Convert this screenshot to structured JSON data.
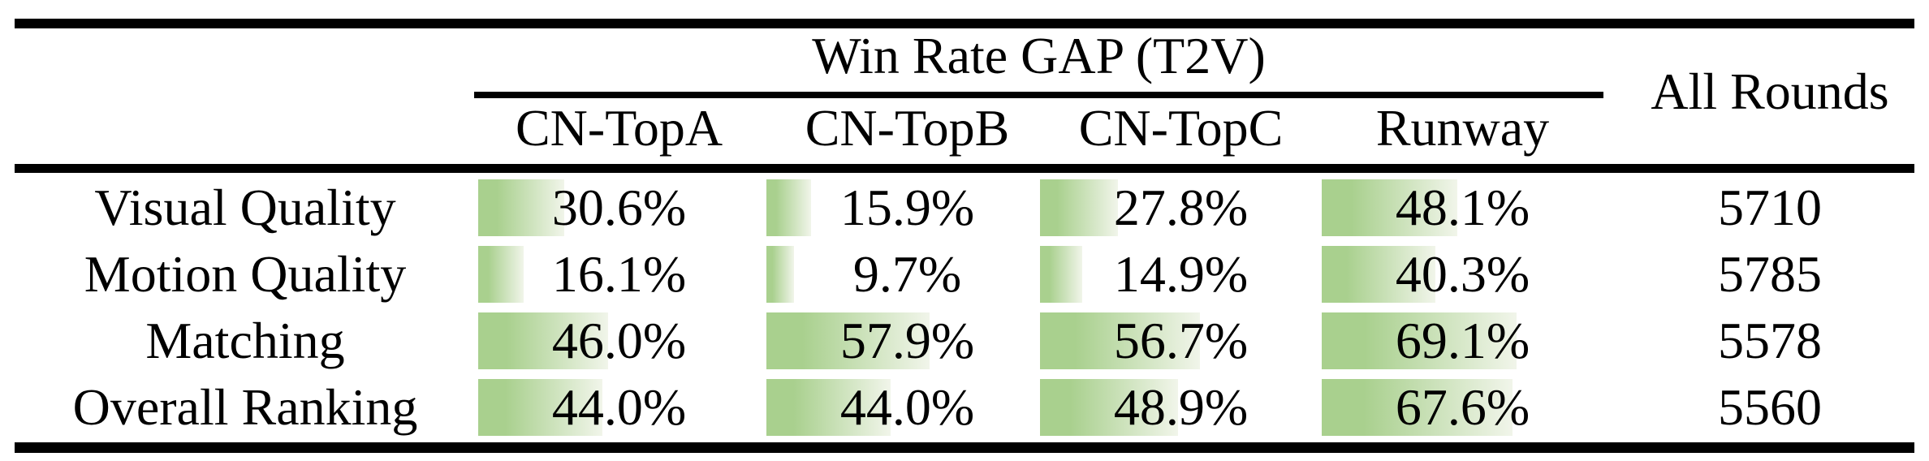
{
  "table": {
    "group_header": "Win Rate GAP (T2V)",
    "all_rounds_header": "All Rounds",
    "columns": [
      "CN-TopA",
      "CN-TopB",
      "CN-TopC",
      "Runway"
    ],
    "rows": [
      {
        "label": "Visual Quality",
        "values": [
          "30.6%",
          "15.9%",
          "27.8%",
          "48.1%"
        ],
        "bar_pcts": [
          30.6,
          15.9,
          27.8,
          48.1
        ],
        "all_rounds": "5710"
      },
      {
        "label": "Motion Quality",
        "values": [
          "16.1%",
          "9.7%",
          "14.9%",
          "40.3%"
        ],
        "bar_pcts": [
          16.1,
          9.7,
          14.9,
          40.3
        ],
        "all_rounds": "5785"
      },
      {
        "label": "Matching",
        "values": [
          "46.0%",
          "57.9%",
          "56.7%",
          "69.1%"
        ],
        "bar_pcts": [
          46.0,
          57.9,
          56.7,
          69.1
        ],
        "all_rounds": "5578"
      },
      {
        "label": "Overall Ranking",
        "values": [
          "44.0%",
          "44.0%",
          "48.9%",
          "67.6%"
        ],
        "bar_pcts": [
          44.0,
          44.0,
          48.9,
          67.6
        ],
        "all_rounds": "5560"
      }
    ],
    "colors": {
      "bar_green": "#a9d08e",
      "bar_fade": "#f1f5ea",
      "rule_black": "#000000"
    }
  },
  "chart_data": {
    "type": "table",
    "title": "Win Rate GAP (T2V)",
    "row_labels": [
      "Visual Quality",
      "Motion Quality",
      "Matching",
      "Overall Ranking"
    ],
    "columns": [
      "CN-TopA",
      "CN-TopB",
      "CN-TopC",
      "Runway",
      "All Rounds"
    ],
    "series": [
      {
        "name": "CN-TopA",
        "values": [
          30.6,
          16.1,
          46.0,
          44.0
        ]
      },
      {
        "name": "CN-TopB",
        "values": [
          15.9,
          9.7,
          57.9,
          44.0
        ]
      },
      {
        "name": "CN-TopC",
        "values": [
          27.8,
          14.9,
          56.7,
          48.9
        ]
      },
      {
        "name": "Runway",
        "values": [
          48.1,
          40.3,
          69.1,
          67.6
        ]
      },
      {
        "name": "All Rounds",
        "values": [
          5710,
          5785,
          5578,
          5560
        ]
      }
    ],
    "value_unit": "percent (win rate gap), All Rounds is a count",
    "bar_scale": "in-cell data bars, 100% = full cell width",
    "bar_color_gradient": [
      "#a9d08e",
      "#f1f5ea"
    ]
  }
}
